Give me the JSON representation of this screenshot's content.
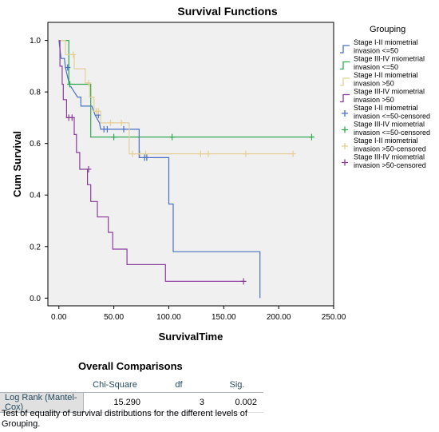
{
  "chart_data": {
    "type": "line",
    "step": true,
    "title": "Survival Functions",
    "xlabel": "SurvivalTime",
    "ylabel": "Cum Survival",
    "xlim": [
      -10,
      250
    ],
    "ylim": [
      -0.03,
      1.07
    ],
    "xticks": [
      0,
      50,
      100,
      150,
      200,
      250
    ],
    "xtick_labels": [
      "0.00",
      "50.00",
      "100.00",
      "150.00",
      "200.00",
      "250.00"
    ],
    "yticks": [
      0.0,
      0.2,
      0.4,
      0.6,
      0.8,
      1.0
    ],
    "ytick_labels": [
      "0.0",
      "0.2",
      "0.4",
      "0.6",
      "0.8",
      "1.0"
    ],
    "legend_title": "Grouping",
    "legend_position": "right",
    "series": [
      {
        "name": "Stage I-II miometrial invasion <=50",
        "color": "#4a6fc6",
        "points": [
          [
            0,
            1.0
          ],
          [
            2,
            0.93
          ],
          [
            5,
            0.93
          ],
          [
            6,
            0.895
          ],
          [
            10,
            0.82
          ],
          [
            11,
            0.82
          ],
          [
            17,
            0.78
          ],
          [
            20,
            0.78
          ],
          [
            20,
            0.745
          ],
          [
            30,
            0.745
          ],
          [
            33,
            0.71
          ],
          [
            37,
            0.68
          ],
          [
            38,
            0.655
          ],
          [
            40,
            0.655
          ],
          [
            41,
            0.655
          ],
          [
            58,
            0.655
          ],
          [
            73,
            0.655
          ],
          [
            73,
            0.545
          ],
          [
            77,
            0.545
          ],
          [
            78,
            0.545
          ],
          [
            100,
            0.545
          ],
          [
            100,
            0.365
          ],
          [
            104,
            0.365
          ],
          [
            104,
            0.18
          ],
          [
            183,
            0.18
          ],
          [
            183,
            0.0
          ]
        ],
        "censored": [
          [
            8,
            0.895
          ],
          [
            36,
            0.71
          ],
          [
            41,
            0.655
          ],
          [
            44,
            0.655
          ],
          [
            59,
            0.655
          ],
          [
            78,
            0.545
          ],
          [
            80,
            0.545
          ]
        ]
      },
      {
        "name": "Stage III-IV miometrial invasion <=50",
        "color": "#2fa84f",
        "points": [
          [
            0,
            1.0
          ],
          [
            3,
            1.0
          ],
          [
            9,
            1.0
          ],
          [
            9,
            0.83
          ],
          [
            29,
            0.83
          ],
          [
            29,
            0.625
          ],
          [
            230,
            0.625
          ]
        ],
        "censored": [
          [
            10,
            0.83
          ],
          [
            50,
            0.625
          ],
          [
            103,
            0.625
          ],
          [
            230,
            0.625
          ]
        ]
      },
      {
        "name": "Stage I-II miometrial invasion >50",
        "color": "#e3cf97",
        "points": [
          [
            0,
            1.0
          ],
          [
            6,
            1.0
          ],
          [
            6,
            0.945
          ],
          [
            14,
            0.945
          ],
          [
            14,
            0.89
          ],
          [
            24,
            0.89
          ],
          [
            24,
            0.835
          ],
          [
            28,
            0.835
          ],
          [
            28,
            0.78
          ],
          [
            32,
            0.78
          ],
          [
            32,
            0.725
          ],
          [
            38,
            0.725
          ],
          [
            38,
            0.68
          ],
          [
            64,
            0.68
          ],
          [
            64,
            0.56
          ],
          [
            213,
            0.56
          ]
        ],
        "censored": [
          [
            13,
            0.945
          ],
          [
            27,
            0.835
          ],
          [
            34,
            0.725
          ],
          [
            36,
            0.725
          ],
          [
            47,
            0.68
          ],
          [
            57,
            0.68
          ],
          [
            67,
            0.56
          ],
          [
            74,
            0.56
          ],
          [
            79,
            0.56
          ],
          [
            129,
            0.56
          ],
          [
            136,
            0.56
          ],
          [
            170,
            0.56
          ],
          [
            213,
            0.56
          ]
        ]
      },
      {
        "name": "Stage III-IV miometrial invasion >50",
        "color": "#8a3c9e",
        "points": [
          [
            0,
            1.0
          ],
          [
            1,
            1.0
          ],
          [
            1,
            0.9
          ],
          [
            3,
            0.9
          ],
          [
            3,
            0.83
          ],
          [
            4,
            0.83
          ],
          [
            4,
            0.77
          ],
          [
            7,
            0.77
          ],
          [
            7,
            0.7
          ],
          [
            14,
            0.7
          ],
          [
            14,
            0.635
          ],
          [
            16,
            0.635
          ],
          [
            16,
            0.565
          ],
          [
            19,
            0.565
          ],
          [
            19,
            0.5
          ],
          [
            26,
            0.5
          ],
          [
            26,
            0.44
          ],
          [
            29,
            0.44
          ],
          [
            29,
            0.375
          ],
          [
            35,
            0.375
          ],
          [
            35,
            0.315
          ],
          [
            45,
            0.315
          ],
          [
            45,
            0.255
          ],
          [
            49,
            0.255
          ],
          [
            49,
            0.19
          ],
          [
            62,
            0.19
          ],
          [
            62,
            0.13
          ],
          [
            97,
            0.13
          ],
          [
            97,
            0.065
          ],
          [
            168,
            0.065
          ]
        ],
        "censored": [
          [
            9,
            0.7
          ],
          [
            12,
            0.7
          ],
          [
            27,
            0.5
          ],
          [
            168,
            0.065
          ]
        ]
      }
    ],
    "legend_entries": [
      {
        "label_lines": [
          "Stage I-II miometrial",
          "invasion <=50"
        ],
        "color": "#4a6fc6",
        "marker": "line"
      },
      {
        "label_lines": [
          "Stage III-IV miometrial",
          "invasion <=50"
        ],
        "color": "#2fa84f",
        "marker": "line"
      },
      {
        "label_lines": [
          "Stage I-II miometrial",
          "invasion >50"
        ],
        "color": "#e3cf97",
        "marker": "line"
      },
      {
        "label_lines": [
          "Stage III-IV miometrial",
          "invasion >50"
        ],
        "color": "#8a3c9e",
        "marker": "line"
      },
      {
        "label_lines": [
          "Stage I-II miometrial",
          "invasion <=50-censored"
        ],
        "color": "#4a6fc6",
        "marker": "plus"
      },
      {
        "label_lines": [
          "Stage III-IV miometrial",
          "invasion <=50-censored"
        ],
        "color": "#2fa84f",
        "marker": "plus"
      },
      {
        "label_lines": [
          "Stage I-II miometrial",
          "invasion >50-censored"
        ],
        "color": "#e3cf97",
        "marker": "plus"
      },
      {
        "label_lines": [
          "Stage III-IV miometrial",
          "invasion >50-censored"
        ],
        "color": "#8a3c9e",
        "marker": "plus"
      }
    ],
    "plot_background": "#f0f0f0"
  },
  "comparisons": {
    "title": "Overall Comparisons",
    "headers": [
      "Chi-Square",
      "df",
      "Sig."
    ],
    "row_label": "Log Rank (Mantel-Cox)",
    "chi_square": "15.290",
    "df": "3",
    "sig": "0.002",
    "footnote": "Test of equality of survival distributions for the different levels of Grouping."
  }
}
